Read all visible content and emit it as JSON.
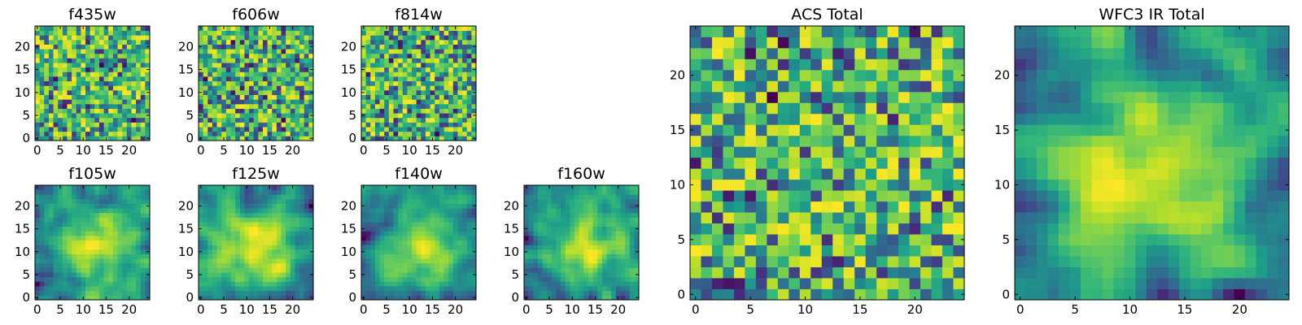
{
  "chart_data": [
    {
      "type": "heatmap",
      "title": "f435w",
      "colormap": "viridis",
      "size": 25,
      "seed": 11,
      "smooth": 0,
      "bright": 0.75,
      "xticks": [
        0,
        5,
        10,
        15,
        20
      ],
      "yticks": [
        0,
        5,
        10,
        15,
        20
      ],
      "xlim": [
        -0.5,
        24.5
      ],
      "ylim": [
        -0.5,
        24.5
      ]
    },
    {
      "type": "heatmap",
      "title": "f606w",
      "colormap": "viridis",
      "size": 25,
      "seed": 23,
      "smooth": 0,
      "bright": 0.72,
      "xticks": [
        0,
        5,
        10,
        15,
        20
      ],
      "yticks": [
        0,
        5,
        10,
        15,
        20
      ],
      "xlim": [
        -0.5,
        24.5
      ],
      "ylim": [
        -0.5,
        24.5
      ]
    },
    {
      "type": "heatmap",
      "title": "f814w",
      "colormap": "viridis",
      "size": 25,
      "seed": 37,
      "smooth": 0,
      "bright": 0.72,
      "xticks": [
        0,
        5,
        10,
        15,
        20
      ],
      "yticks": [
        0,
        5,
        10,
        15,
        20
      ],
      "xlim": [
        -0.5,
        24.5
      ],
      "ylim": [
        -0.5,
        24.5
      ]
    },
    {
      "type": "heatmap",
      "title": "f105w",
      "colormap": "viridis",
      "size": 25,
      "seed": 41,
      "smooth": 2,
      "bright": 0.72,
      "xticks": [
        0,
        5,
        10,
        15,
        20
      ],
      "yticks": [
        0,
        5,
        10,
        15,
        20
      ],
      "xlim": [
        -0.5,
        24.5
      ],
      "ylim": [
        -0.5,
        24.5
      ]
    },
    {
      "type": "heatmap",
      "title": "f125w",
      "colormap": "viridis",
      "size": 25,
      "seed": 53,
      "smooth": 2,
      "bright": 0.72,
      "xticks": [
        0,
        5,
        10,
        15,
        20
      ],
      "yticks": [
        0,
        5,
        10,
        15,
        20
      ],
      "xlim": [
        -0.5,
        24.5
      ],
      "ylim": [
        -0.5,
        24.5
      ]
    },
    {
      "type": "heatmap",
      "title": "f140w",
      "colormap": "viridis",
      "size": 25,
      "seed": 67,
      "smooth": 2,
      "bright": 0.68,
      "xticks": [
        0,
        5,
        10,
        15,
        20
      ],
      "yticks": [
        0,
        5,
        10,
        15,
        20
      ],
      "xlim": [
        -0.5,
        24.5
      ],
      "ylim": [
        -0.5,
        24.5
      ]
    },
    {
      "type": "heatmap",
      "title": "f160w",
      "colormap": "viridis",
      "size": 25,
      "seed": 79,
      "smooth": 2,
      "bright": 0.66,
      "xticks": [
        0,
        5,
        10,
        15,
        20
      ],
      "yticks": [
        0,
        5,
        10,
        15,
        20
      ],
      "xlim": [
        -0.5,
        24.5
      ],
      "ylim": [
        -0.5,
        24.5
      ]
    },
    {
      "type": "heatmap",
      "title": "ACS Total",
      "colormap": "viridis",
      "size": 25,
      "seed": 97,
      "smooth": 0,
      "bright": 0.72,
      "xticks": [
        0,
        5,
        10,
        15,
        20
      ],
      "yticks": [
        0,
        5,
        10,
        15,
        20
      ],
      "xlim": [
        -0.5,
        24.5
      ],
      "ylim": [
        -0.5,
        24.5
      ]
    },
    {
      "type": "heatmap",
      "title": "WFC3 IR Total",
      "colormap": "viridis",
      "size": 25,
      "seed": 101,
      "smooth": 2,
      "bright": 0.7,
      "xticks": [
        0,
        5,
        10,
        15,
        20
      ],
      "yticks": [
        0,
        5,
        10,
        15,
        20
      ],
      "xlim": [
        -0.5,
        24.5
      ],
      "ylim": [
        -0.5,
        24.5
      ]
    }
  ]
}
